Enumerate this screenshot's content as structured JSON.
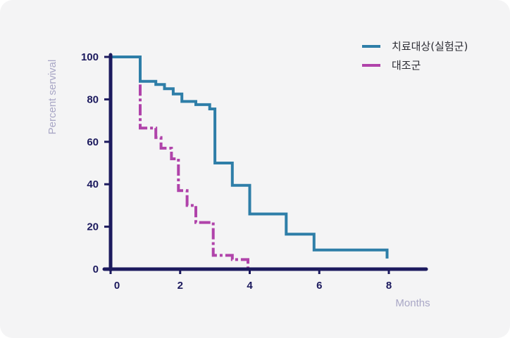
{
  "chart_data": {
    "type": "line",
    "title": "",
    "xlabel": "Months",
    "ylabel": "Percent servival",
    "xlim": [
      0,
      9
    ],
    "ylim": [
      0,
      100
    ],
    "x_ticks": [
      0,
      2,
      4,
      6,
      8
    ],
    "y_ticks": [
      0,
      20,
      40,
      60,
      80,
      100
    ],
    "grid": false,
    "legend_position": "top-right",
    "series": [
      {
        "name": "치료대상(실험군)",
        "color": "#2e7ea8",
        "style": "solid",
        "step_points": [
          [
            0,
            100
          ],
          [
            0.85,
            100
          ],
          [
            0.85,
            88.5
          ],
          [
            1.3,
            88.5
          ],
          [
            1.3,
            87
          ],
          [
            1.55,
            87
          ],
          [
            1.55,
            85
          ],
          [
            1.8,
            85
          ],
          [
            1.8,
            82.5
          ],
          [
            2.05,
            82.5
          ],
          [
            2.05,
            79
          ],
          [
            2.45,
            79
          ],
          [
            2.45,
            77.5
          ],
          [
            2.85,
            77.5
          ],
          [
            2.85,
            75.5
          ],
          [
            3.0,
            75.5
          ],
          [
            3.0,
            50
          ],
          [
            3.5,
            50
          ],
          [
            3.5,
            39.5
          ],
          [
            4.0,
            39.5
          ],
          [
            4.0,
            26
          ],
          [
            5.05,
            26
          ],
          [
            5.05,
            16.5
          ],
          [
            5.85,
            16.5
          ],
          [
            5.85,
            9
          ],
          [
            7.95,
            9
          ],
          [
            7.95,
            5
          ]
        ]
      },
      {
        "name": "대조군",
        "color": "#b043aa",
        "style": "dashed",
        "step_points": [
          [
            0.85,
            87
          ],
          [
            0.85,
            66.5
          ],
          [
            1.3,
            66.5
          ],
          [
            1.3,
            62
          ],
          [
            1.45,
            62
          ],
          [
            1.45,
            57
          ],
          [
            1.75,
            57
          ],
          [
            1.75,
            52
          ],
          [
            1.95,
            52
          ],
          [
            1.95,
            37
          ],
          [
            2.2,
            37
          ],
          [
            2.2,
            30
          ],
          [
            2.45,
            30
          ],
          [
            2.45,
            22
          ],
          [
            2.95,
            22
          ],
          [
            2.95,
            6.5
          ],
          [
            3.5,
            6.5
          ],
          [
            3.5,
            4.5
          ],
          [
            3.95,
            4.5
          ],
          [
            3.95,
            0.5
          ]
        ]
      }
    ]
  }
}
